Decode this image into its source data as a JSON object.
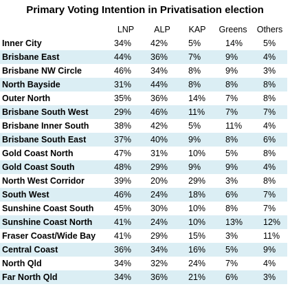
{
  "title": "Primary Voting Intention in Privatisation election",
  "columns": [
    "LNP",
    "ALP",
    "KAP",
    "Greens",
    "Others"
  ],
  "rows": [
    {
      "region": "Inner City",
      "values": [
        "34%",
        "42%",
        "5%",
        "14%",
        "5%"
      ]
    },
    {
      "region": "Brisbane East",
      "values": [
        "44%",
        "36%",
        "7%",
        "9%",
        "4%"
      ]
    },
    {
      "region": "Brisbane NW Circle",
      "values": [
        "46%",
        "34%",
        "8%",
        "9%",
        "3%"
      ]
    },
    {
      "region": "North Bayside",
      "values": [
        "31%",
        "44%",
        "8%",
        "8%",
        "8%"
      ]
    },
    {
      "region": "Outer North",
      "values": [
        "35%",
        "36%",
        "14%",
        "7%",
        "8%"
      ]
    },
    {
      "region": "Brisbane South West",
      "values": [
        "29%",
        "46%",
        "11%",
        "7%",
        "7%"
      ]
    },
    {
      "region": "Brisbane Inner South",
      "values": [
        "38%",
        "42%",
        "5%",
        "11%",
        "4%"
      ]
    },
    {
      "region": "Brisbane South East",
      "values": [
        "37%",
        "40%",
        "9%",
        "8%",
        "6%"
      ]
    },
    {
      "region": "Gold Coast North",
      "values": [
        "47%",
        "31%",
        "10%",
        "5%",
        "8%"
      ]
    },
    {
      "region": "Gold Coast South",
      "values": [
        "48%",
        "29%",
        "9%",
        "9%",
        "4%"
      ]
    },
    {
      "region": "North West Corridor",
      "values": [
        "39%",
        "20%",
        "29%",
        "3%",
        "8%"
      ]
    },
    {
      "region": "South West",
      "values": [
        "46%",
        "24%",
        "18%",
        "6%",
        "7%"
      ]
    },
    {
      "region": "Sunshine Coast South",
      "values": [
        "45%",
        "30%",
        "10%",
        "8%",
        "7%"
      ]
    },
    {
      "region": "Sunshine Coast North",
      "values": [
        "41%",
        "24%",
        "10%",
        "13%",
        "12%"
      ]
    },
    {
      "region": "Fraser Coast/Wide Bay",
      "values": [
        "41%",
        "29%",
        "15%",
        "3%",
        "11%"
      ]
    },
    {
      "region": "Central Coast",
      "values": [
        "36%",
        "34%",
        "16%",
        "5%",
        "9%"
      ]
    },
    {
      "region": "North Qld",
      "values": [
        "34%",
        "32%",
        "24%",
        "7%",
        "4%"
      ]
    },
    {
      "region": "Far North Qld",
      "values": [
        "34%",
        "36%",
        "21%",
        "6%",
        "3%"
      ]
    }
  ],
  "colors": {
    "shaded_row": "#dbeef4",
    "background": "#ffffff",
    "text": "#000000"
  }
}
